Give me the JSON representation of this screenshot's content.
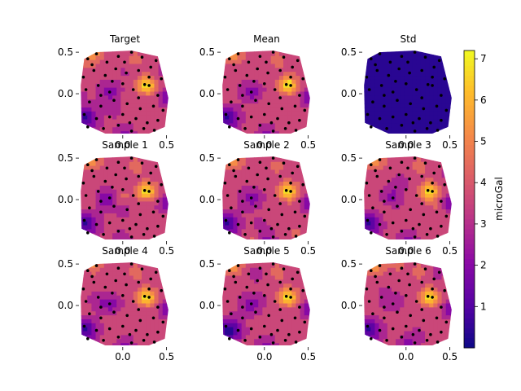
{
  "chart_data": {
    "type": "contour",
    "panels": [
      {
        "title": "Target",
        "kind": "field",
        "seed": 1,
        "noise": 0.55
      },
      {
        "title": "Mean",
        "kind": "field",
        "seed": 2,
        "noise": 0.25
      },
      {
        "title": "Std",
        "kind": "std",
        "seed": 3,
        "noise": 0.0
      },
      {
        "title": "Sample 1",
        "kind": "field",
        "seed": 4,
        "noise": 0.7
      },
      {
        "title": "Sample 2",
        "kind": "field",
        "seed": 5,
        "noise": 0.6
      },
      {
        "title": "Sample 3",
        "kind": "field",
        "seed": 6,
        "noise": 0.6
      },
      {
        "title": "Sample 4",
        "kind": "field",
        "seed": 7,
        "noise": 0.6
      },
      {
        "title": "Sample 5",
        "kind": "field",
        "seed": 8,
        "noise": 0.6
      },
      {
        "title": "Sample 6",
        "kind": "field",
        "seed": 9,
        "noise": 0.65
      }
    ],
    "xlim": [
      -0.5,
      0.55
    ],
    "ylim": [
      -0.5,
      0.55
    ],
    "xticks": [
      0.0,
      0.5
    ],
    "xtick_labels": [
      "0.0",
      "0.5"
    ],
    "yticks": [
      0.5,
      0.0
    ],
    "ytick_labels": [
      "0.5",
      "0.0"
    ],
    "colorbar": {
      "label": "microGal",
      "min": 0.0,
      "max": 7.2,
      "ticks": [
        1,
        2,
        3,
        4,
        5,
        6,
        7
      ],
      "tick_labels": [
        "1",
        "2",
        "3",
        "4",
        "5",
        "6",
        "7"
      ],
      "colormap": "plasma"
    },
    "levels": [
      0.0,
      0.8,
      1.6,
      2.4,
      3.2,
      4.0,
      4.8,
      5.6,
      6.4,
      7.2
    ],
    "stations": [
      [
        -0.4,
        0.42
      ],
      [
        -0.3,
        0.48
      ],
      [
        -0.18,
        0.38
      ],
      [
        -0.05,
        0.45
      ],
      [
        0.1,
        0.5
      ],
      [
        0.22,
        0.44
      ],
      [
        0.38,
        0.4
      ],
      [
        -0.45,
        0.2
      ],
      [
        -0.33,
        0.28
      ],
      [
        -0.2,
        0.22
      ],
      [
        -0.08,
        0.3
      ],
      [
        0.04,
        0.25
      ],
      [
        0.18,
        0.28
      ],
      [
        0.3,
        0.2
      ],
      [
        0.44,
        0.18
      ],
      [
        -0.42,
        0.05
      ],
      [
        -0.28,
        0.1
      ],
      [
        -0.15,
        0.02
      ],
      [
        0.0,
        0.12
      ],
      [
        0.12,
        0.05
      ],
      [
        0.25,
        0.11
      ],
      [
        0.3,
        0.1
      ],
      [
        0.4,
        -0.02
      ],
      [
        -0.38,
        -0.1
      ],
      [
        -0.25,
        -0.15
      ],
      [
        -0.1,
        -0.08
      ],
      [
        0.05,
        -0.12
      ],
      [
        0.18,
        -0.05
      ],
      [
        0.35,
        -0.15
      ],
      [
        0.46,
        -0.2
      ],
      [
        -0.44,
        -0.25
      ],
      [
        -0.3,
        -0.3
      ],
      [
        -0.15,
        -0.28
      ],
      [
        0.0,
        -0.25
      ],
      [
        0.15,
        -0.3
      ],
      [
        0.28,
        -0.35
      ],
      [
        0.4,
        -0.32
      ],
      [
        -0.4,
        -0.4
      ],
      [
        -0.22,
        -0.42
      ],
      [
        -0.05,
        -0.38
      ],
      [
        0.1,
        -0.45
      ],
      [
        0.24,
        -0.42
      ],
      [
        0.36,
        -0.44
      ],
      [
        -0.35,
        0.35
      ],
      [
        0.02,
        0.38
      ],
      [
        0.32,
        0.32
      ],
      [
        -0.25,
        -0.02
      ],
      [
        0.08,
        -0.35
      ],
      [
        -0.12,
        0.15
      ],
      [
        0.2,
        -0.18
      ]
    ]
  }
}
